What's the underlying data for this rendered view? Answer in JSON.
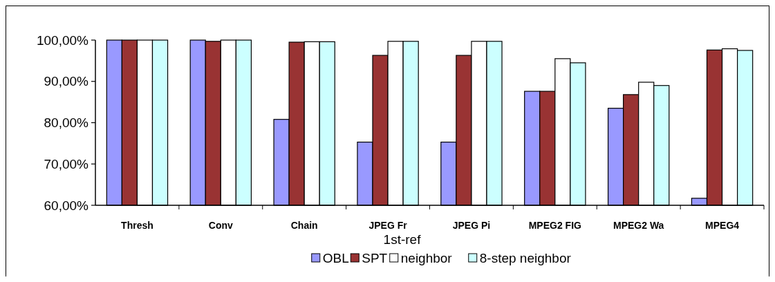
{
  "chart_data": {
    "type": "bar",
    "xlabel": "1st-ref",
    "categories": [
      "Thresh",
      "Conv",
      "Chain",
      "JPEG Fr",
      "JPEG Pi",
      "MPEG2 FIG",
      "MPEG2 Wa",
      "MPEG4"
    ],
    "series": [
      {
        "name": "OBL",
        "color": "#9999ff",
        "values": [
          100,
          100,
          80.8,
          75.3,
          75.3,
          87.6,
          83.5,
          61.7
        ]
      },
      {
        "name": "SPT",
        "color": "#993333",
        "values": [
          100,
          99.7,
          99.5,
          96.3,
          96.3,
          87.6,
          86.8,
          97.6
        ]
      },
      {
        "name": "neighbor",
        "color": "#ffffff",
        "values": [
          100,
          100,
          99.6,
          99.7,
          99.7,
          95.5,
          89.8,
          97.9
        ]
      },
      {
        "name": "8-step neighbor",
        "color": "#ccffff",
        "values": [
          100,
          100,
          99.6,
          99.7,
          99.7,
          94.5,
          89.0,
          97.5
        ]
      }
    ],
    "ylim": [
      60,
      100
    ],
    "yticks": [
      {
        "value": 60,
        "label": "60,00%"
      },
      {
        "value": 70,
        "label": "70,00%"
      },
      {
        "value": 80,
        "label": "80,00%"
      },
      {
        "value": 90,
        "label": "90,00%"
      },
      {
        "value": 100,
        "label": "100,00%"
      }
    ],
    "grid": false,
    "legend": "bottom"
  }
}
